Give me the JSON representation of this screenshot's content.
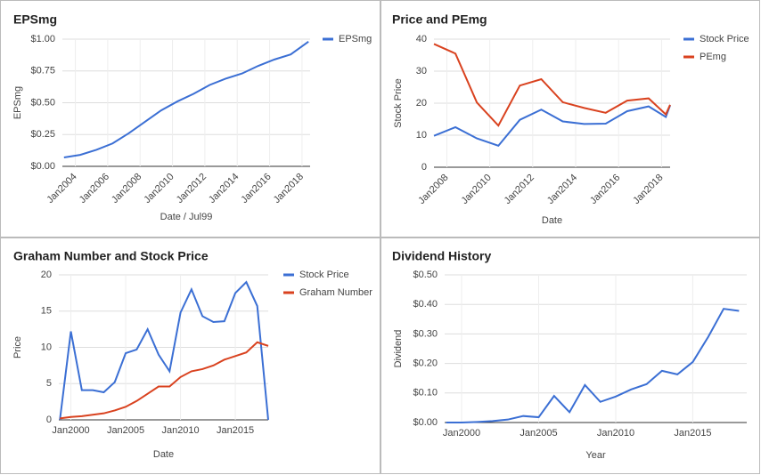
{
  "chart_data": [
    {
      "type": "line",
      "title": "EPSmg",
      "xlabel": "Date / Jul99",
      "ylabel": "EPSmg",
      "legend": "right",
      "grid": true,
      "x": [
        2003.3,
        2004.3,
        2005.3,
        2006.3,
        2007.3,
        2008.3,
        2009.3,
        2010.3,
        2011.3,
        2012.3,
        2013.3,
        2014.3,
        2015.3,
        2016.3,
        2017.3,
        2018.4
      ],
      "series": [
        {
          "name": "EPSmg",
          "color": "#3b6fd4",
          "values": [
            0.07,
            0.09,
            0.13,
            0.18,
            0.26,
            0.35,
            0.44,
            0.51,
            0.57,
            0.64,
            0.69,
            0.73,
            0.79,
            0.84,
            0.88,
            0.98
          ]
        }
      ],
      "xlim": [
        2003.2,
        2018.5
      ],
      "xticks": [
        {
          "value": 2004,
          "label": "Jan2004"
        },
        {
          "value": 2006,
          "label": "Jan2006"
        },
        {
          "value": 2008,
          "label": "Jan2008"
        },
        {
          "value": 2010,
          "label": "Jan2010"
        },
        {
          "value": 2012,
          "label": "Jan2012"
        },
        {
          "value": 2014,
          "label": "Jan2014"
        },
        {
          "value": 2016,
          "label": "Jan2016"
        },
        {
          "value": 2018,
          "label": "Jan2018"
        }
      ],
      "ylim": [
        0,
        1
      ],
      "yticks": [
        {
          "value": 0,
          "label": "$0.00"
        },
        {
          "value": 0.25,
          "label": "$0.25"
        },
        {
          "value": 0.5,
          "label": "$0.50"
        },
        {
          "value": 0.75,
          "label": "$0.75"
        },
        {
          "value": 1,
          "label": "$1.00"
        }
      ]
    },
    {
      "type": "line",
      "title": "Price and PEmg",
      "xlabel": "Date",
      "ylabel": "Stock Price",
      "legend": "right",
      "grid": true,
      "x": [
        2007.4,
        2008.4,
        2009.4,
        2010.4,
        2011.4,
        2012.4,
        2013.4,
        2014.4,
        2015.4,
        2016.4,
        2017.4,
        2018.2,
        2018.4
      ],
      "series": [
        {
          "name": "Stock Price",
          "color": "#3b6fd4",
          "values": [
            9.8,
            12.5,
            9,
            6.7,
            14.8,
            18,
            14.3,
            13.5,
            13.6,
            17.5,
            19,
            15.7,
            19.3
          ]
        },
        {
          "name": "PEmg",
          "color": "#d9421f",
          "values": [
            38.5,
            35.5,
            20.2,
            13,
            25.5,
            27.5,
            20.3,
            18.5,
            17,
            20.8,
            21.5,
            16.5,
            19.5
          ]
        }
      ],
      "xlim": [
        2007.4,
        2018.4
      ],
      "xticks": [
        {
          "value": 2008,
          "label": "Jan2008"
        },
        {
          "value": 2010,
          "label": "Jan2010"
        },
        {
          "value": 2012,
          "label": "Jan2012"
        },
        {
          "value": 2014,
          "label": "Jan2014"
        },
        {
          "value": 2016,
          "label": "Jan2016"
        },
        {
          "value": 2018,
          "label": "Jan2018"
        }
      ],
      "ylim": [
        0,
        40
      ],
      "yticks": [
        0,
        10,
        20,
        30,
        40
      ]
    },
    {
      "type": "line",
      "title": "Graham Number and Stock Price",
      "xlabel": "Date",
      "ylabel": "Price",
      "legend": "right",
      "grid": true,
      "x": [
        1999,
        2000,
        2001,
        2002,
        2003,
        2004,
        2005,
        2006,
        2007,
        2008,
        2009,
        2010,
        2011,
        2012,
        2013,
        2014,
        2015,
        2016,
        2017,
        2018
      ],
      "series": [
        {
          "name": "Stock Price",
          "color": "#3b6fd4",
          "values": [
            0,
            12.2,
            4.1,
            4.1,
            3.8,
            5.2,
            9.2,
            9.7,
            12.5,
            9,
            6.7,
            14.8,
            18,
            14.3,
            13.5,
            13.6,
            17.5,
            19,
            15.7,
            0
          ]
        },
        {
          "name": "Graham Number",
          "color": "#d9421f",
          "values": [
            0.2,
            0.4,
            0.5,
            0.7,
            0.9,
            1.3,
            1.8,
            2.6,
            3.6,
            4.6,
            4.6,
            5.9,
            6.7,
            7,
            7.5,
            8.3,
            8.8,
            9.3,
            10.7,
            10.2
          ]
        }
      ],
      "xlim": [
        1998.9,
        2018
      ],
      "xticks": [
        {
          "value": 2000,
          "label": "Jan2000"
        },
        {
          "value": 2005,
          "label": "Jan2005"
        },
        {
          "value": 2010,
          "label": "Jan2010"
        },
        {
          "value": 2015,
          "label": "Jan2015"
        }
      ],
      "ylim": [
        0,
        20
      ],
      "yticks": [
        0,
        5,
        10,
        15,
        20
      ]
    },
    {
      "type": "line",
      "title": "Dividend History",
      "xlabel": "Year",
      "ylabel": "Dividend",
      "grid": true,
      "color": "#3b6fd4",
      "x": [
        1999,
        2000,
        2001,
        2002,
        2003,
        2004,
        2005,
        2006,
        2007,
        2008,
        2009,
        2010,
        2011,
        2012,
        2013,
        2014,
        2015,
        2016,
        2017,
        2018
      ],
      "values": [
        0,
        0,
        0.002,
        0.005,
        0.01,
        0.022,
        0.018,
        0.09,
        0.035,
        0.127,
        0.07,
        0.088,
        0.112,
        0.13,
        0.175,
        0.163,
        0.205,
        0.29,
        0.385,
        0.378
      ],
      "xlim": [
        1998.9,
        2018.5
      ],
      "xticks": [
        {
          "value": 2000,
          "label": "Jan2000"
        },
        {
          "value": 2005,
          "label": "Jan2005"
        },
        {
          "value": 2010,
          "label": "Jan2010"
        },
        {
          "value": 2015,
          "label": "Jan2015"
        }
      ],
      "ylim": [
        0,
        0.5
      ],
      "yticks": [
        {
          "value": 0,
          "label": "$0.00"
        },
        {
          "value": 0.1,
          "label": "$0.10"
        },
        {
          "value": 0.2,
          "label": "$0.20"
        },
        {
          "value": 0.3,
          "label": "$0.30"
        },
        {
          "value": 0.4,
          "label": "$0.40"
        },
        {
          "value": 0.5,
          "label": "$0.50"
        }
      ]
    }
  ]
}
